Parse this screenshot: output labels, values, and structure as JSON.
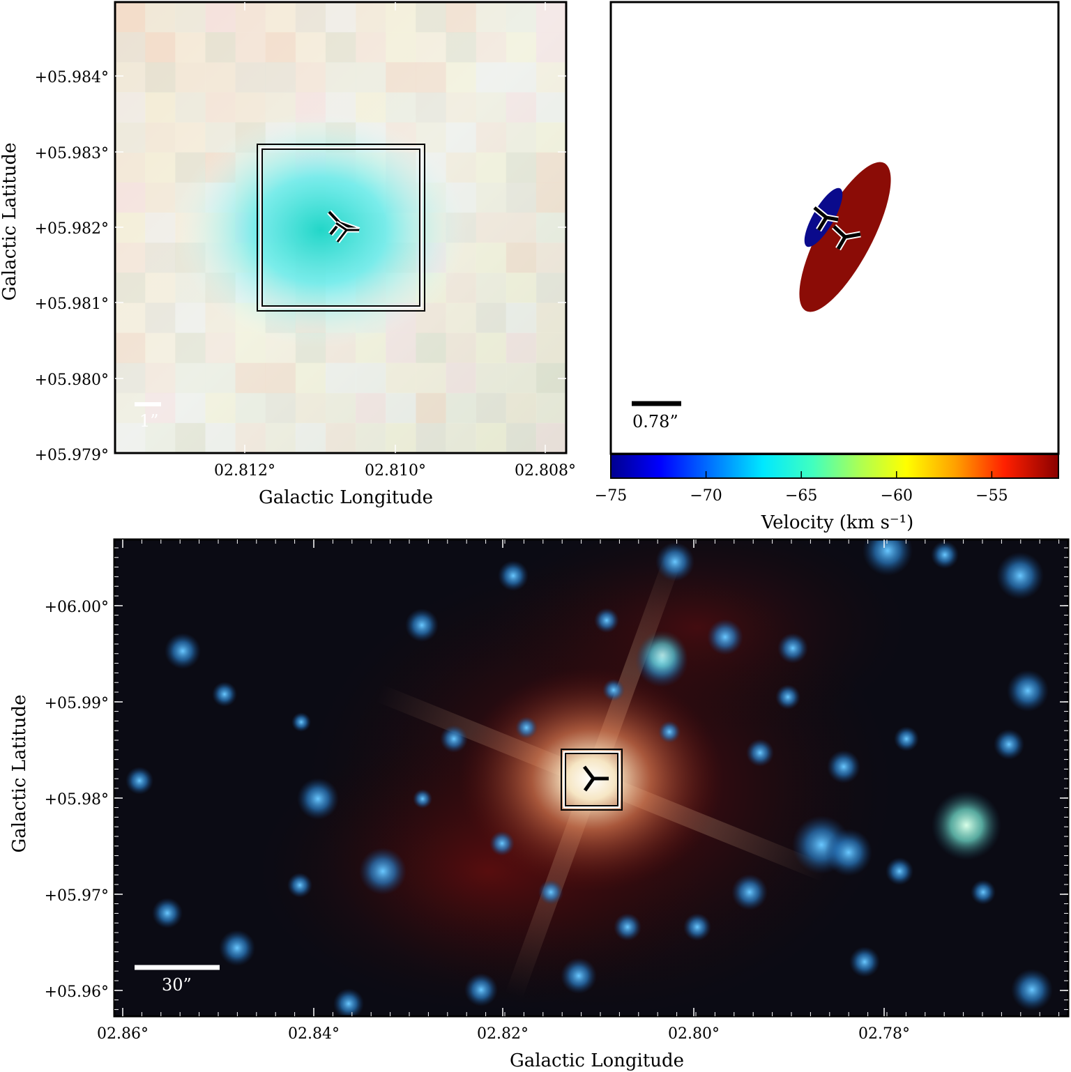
{
  "figure": {
    "panel_a": {
      "ylabel": "Galactic Latitude",
      "xlabel": "Galactic Longitude",
      "yticks": [
        "+05.984°",
        "+05.983°",
        "+05.982°",
        "+05.981°",
        "+05.980°",
        "+05.979°"
      ],
      "xticks": [
        "02.812°",
        "02.810°",
        "02.808°"
      ],
      "scale_bar_label": "1”",
      "colors": {
        "scale_bar": "#ffffff",
        "marker": "#000000",
        "box": "#000000"
      }
    },
    "panel_b": {
      "scale_bar_label": "0.78”",
      "colorbar": {
        "title": "Velocity (km s⁻¹)",
        "ticks": [
          "−75",
          "−70",
          "−65",
          "−60",
          "−55"
        ],
        "tick_values": [
          -75,
          -70,
          -65,
          -60,
          -55
        ],
        "range": [
          -75,
          -51.5
        ]
      },
      "blue_ellipse_color": "#0a0a8c",
      "red_ellipse_color": "#8b0c06"
    },
    "panel_c": {
      "ylabel": "Galactic Latitude",
      "xlabel": "Galactic Longitude",
      "yticks": [
        "+06.00°",
        "+05.99°",
        "+05.98°",
        "+05.97°",
        "+05.96°"
      ],
      "xticks": [
        "02.86°",
        "02.84°",
        "02.82°",
        "02.80°",
        "02.78°"
      ],
      "scale_bar_label": "30”"
    }
  }
}
